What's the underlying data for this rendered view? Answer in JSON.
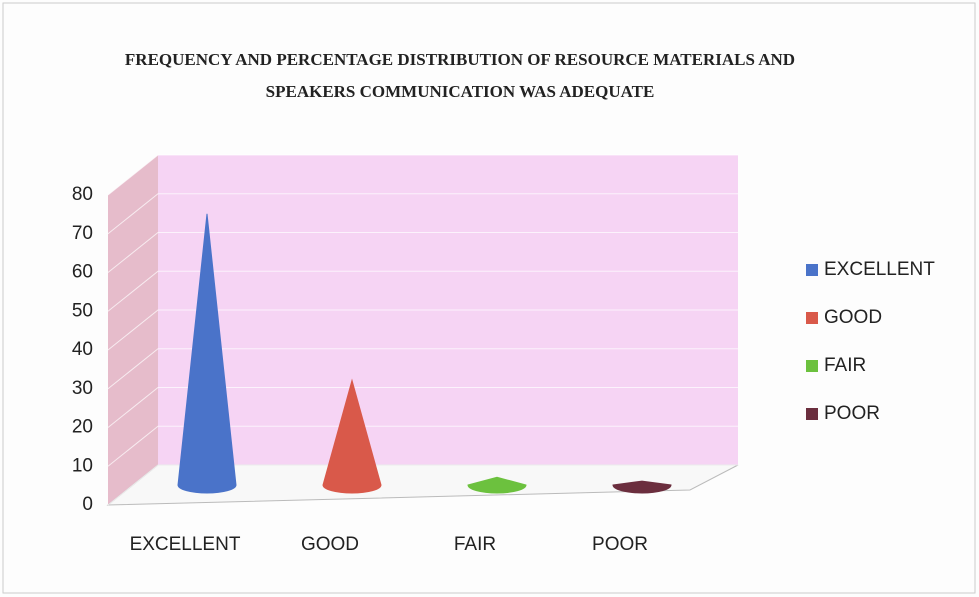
{
  "chart_data": {
    "type": "cone",
    "title": "FREQUENCY AND PERCENTAGE DISTRIBUTION OF RESOURCE MATERIALS AND SPEAKERS COMMUNICATION WAS ADEQUATE",
    "categories": [
      "EXCELLENT",
      "GOOD",
      "FAIR",
      "POOR"
    ],
    "values": [
      70,
      27,
      2,
      1
    ],
    "colors": [
      "#4a73c9",
      "#d9594a",
      "#6cc13e",
      "#6b2e3e"
    ],
    "ylim": [
      0,
      80
    ],
    "yticks": [
      0,
      10,
      20,
      30,
      40,
      50,
      60,
      70,
      80
    ],
    "grid": true,
    "legend": "right"
  }
}
